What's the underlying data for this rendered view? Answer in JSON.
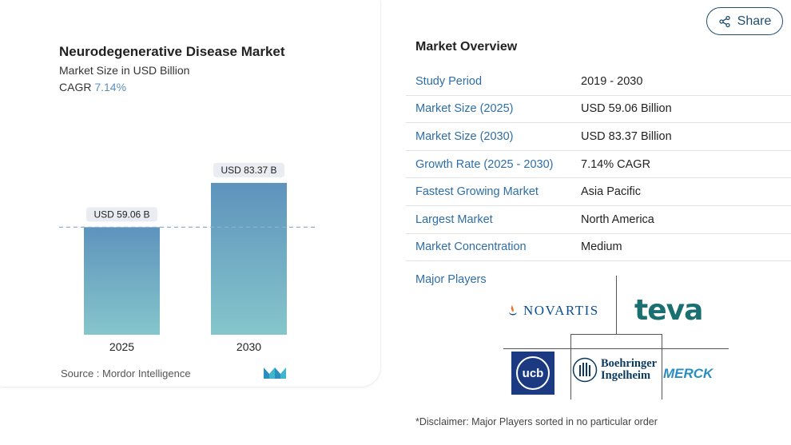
{
  "chart": {
    "title": "Neurodegenerative Disease Market",
    "subtitle": "Market Size in USD Billion",
    "cagr_label": "CAGR",
    "cagr_value": "7.14%",
    "source": "Source :  Mordor Intelligence"
  },
  "chart_data": {
    "type": "bar",
    "categories": [
      "2025",
      "2030"
    ],
    "values": [
      59.06,
      83.37
    ],
    "data_labels": [
      "USD 59.06 B",
      "USD 83.37 B"
    ],
    "title": "Neurodegenerative Disease Market",
    "subtitle": "Market Size in USD Billion",
    "xlabel": "",
    "ylabel": "",
    "ylim": [
      0,
      100
    ],
    "reference_line_value": 59.06,
    "grid": false,
    "colors": {
      "bar_top": "#5e93bd",
      "bar_bottom": "#85c6cb",
      "reference_line": "#8fb0cc"
    }
  },
  "share": {
    "label": "Share",
    "icon": "share-icon"
  },
  "overview": {
    "title": "Market Overview",
    "rows": [
      {
        "label": "Study Period",
        "value": "2019 - 2030"
      },
      {
        "label": "Market Size (2025)",
        "value": "USD 59.06 Billion"
      },
      {
        "label": "Market Size (2030)",
        "value": "USD 83.37 Billion"
      },
      {
        "label": "Growth Rate (2025 - 2030)",
        "value": "7.14% CAGR"
      },
      {
        "label": "Fastest Growing Market",
        "value": "Asia Pacific"
      },
      {
        "label": "Largest Market",
        "value": "North America"
      },
      {
        "label": "Market Concentration",
        "value": "Medium"
      }
    ]
  },
  "players": {
    "label": "Major Players",
    "logos": {
      "novartis": "NOVARTIS",
      "teva": "teva",
      "ucb": "ucb",
      "boehringer_line1": "Boehringer",
      "boehringer_line2": "Ingelheim",
      "merck": "MERCK"
    }
  },
  "disclaimer": "*Disclaimer: Major Players sorted in no particular order",
  "colors": {
    "accent": "#2d6ea6",
    "share_border": "#1f4e6e"
  }
}
